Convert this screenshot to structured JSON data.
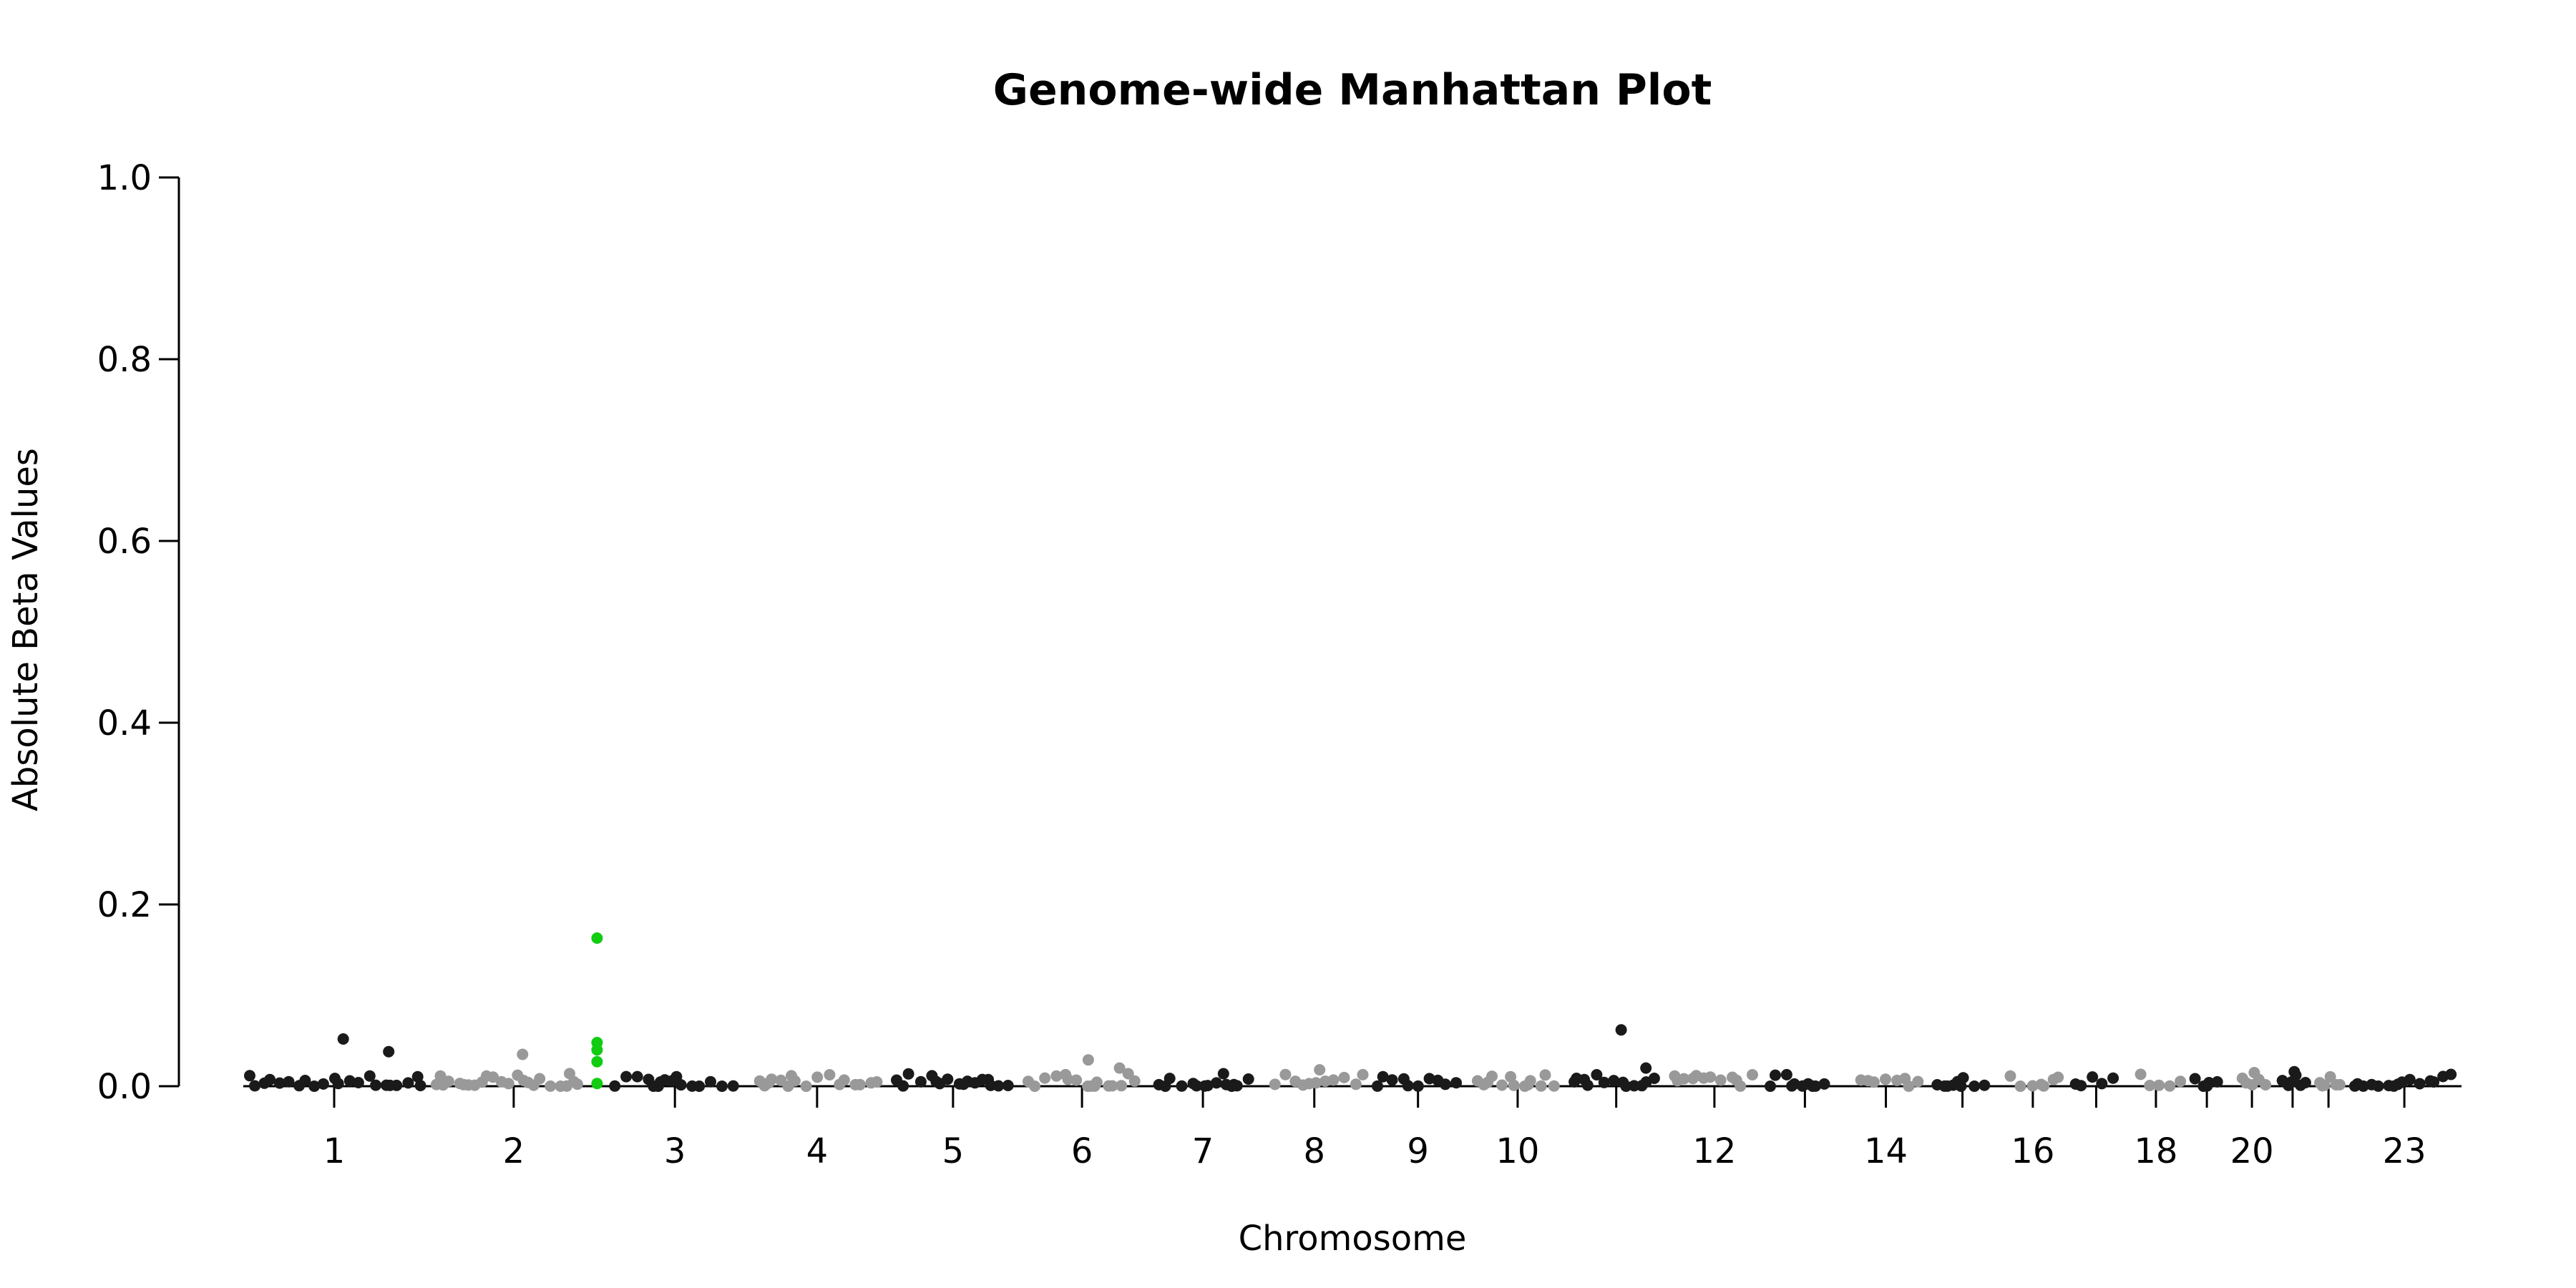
{
  "chart_data": {
    "type": "scatter",
    "title": "Genome-wide Manhattan Plot",
    "xlabel": "Chromosome",
    "ylabel": "Absolute Beta Values",
    "ylim": [
      0,
      1.0
    ],
    "yticks": [
      "0.0",
      "0.2",
      "0.4",
      "0.6",
      "0.8",
      "1.0"
    ],
    "xticks": [
      "1",
      "2",
      "3",
      "4",
      "5",
      "6",
      "7",
      "8",
      "9",
      "10",
      "12",
      "14",
      "16",
      "18",
      "20",
      "23"
    ],
    "chromosomes": [
      "1",
      "2",
      "3",
      "4",
      "5",
      "6",
      "7",
      "8",
      "9",
      "10",
      "11",
      "12",
      "13",
      "14",
      "15",
      "16",
      "17",
      "18",
      "19",
      "20",
      "21",
      "22",
      "23"
    ],
    "colors": {
      "odd": "#1a1a1a",
      "even": "#999999",
      "highlight": "#11cc11"
    },
    "highlight_chromosome": "2",
    "highlight_values": [
      0.163,
      0.048,
      0.04,
      0.027,
      0.003
    ],
    "notable_points": [
      {
        "chromosome": "1",
        "value": 0.052
      },
      {
        "chromosome": "1",
        "value": 0.038
      },
      {
        "chromosome": "2",
        "value": 0.035
      },
      {
        "chromosome": "6",
        "value": 0.029
      },
      {
        "chromosome": "6",
        "value": 0.02
      },
      {
        "chromosome": "8",
        "value": 0.018
      },
      {
        "chromosome": "11",
        "value": 0.062
      },
      {
        "chromosome": "11",
        "value": 0.02
      },
      {
        "chromosome": "20",
        "value": 0.015
      },
      {
        "chromosome": "21",
        "value": 0.016
      }
    ],
    "baseline_range": [
      0.0,
      0.014
    ],
    "grid": false,
    "legend": "none"
  }
}
